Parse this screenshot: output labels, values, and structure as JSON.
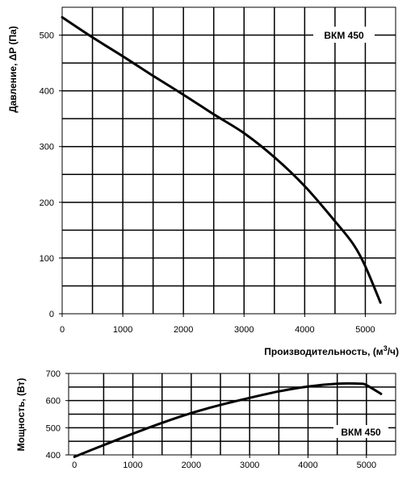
{
  "chart_data": [
    {
      "type": "line",
      "series": [
        {
          "name": "ВКМ 450",
          "x": [
            0,
            500,
            1000,
            1500,
            2000,
            2500,
            3000,
            3500,
            4000,
            4500,
            4800,
            5000,
            5250
          ],
          "y": [
            532,
            496,
            462,
            427,
            393,
            358,
            324,
            281,
            229,
            166,
            125,
            85,
            20
          ]
        }
      ],
      "xlim": [
        0,
        5500
      ],
      "ylim": [
        0,
        550
      ],
      "xticks": [
        "0",
        "1000",
        "2000",
        "3000",
        "4000",
        "5000"
      ],
      "yticks": [
        "0",
        "100",
        "200",
        "300",
        "400",
        "500"
      ],
      "xlabel": "Производительность, (м³/ч)",
      "ylabel": "Давление, ΔP (Па)",
      "series_label": "ВКМ 450",
      "grid": true
    },
    {
      "type": "line",
      "series": [
        {
          "name": "ВКМ 450",
          "x": [
            0,
            500,
            1000,
            1500,
            2000,
            2500,
            3000,
            3500,
            4000,
            4500,
            4900,
            5000,
            5250
          ],
          "y": [
            393,
            436,
            478,
            518,
            554,
            584,
            610,
            634,
            652,
            662,
            662,
            657,
            625
          ]
        }
      ],
      "xlim": [
        -100,
        5500
      ],
      "ylim": [
        400,
        700
      ],
      "xticks": [
        "0",
        "1000",
        "2000",
        "3000",
        "4000",
        "5000"
      ],
      "yticks": [
        "400",
        "500",
        "600",
        "700"
      ],
      "xlabel": "",
      "ylabel": "Мощность, (Вт)",
      "series_label": "ВКМ 450",
      "grid": true
    }
  ]
}
